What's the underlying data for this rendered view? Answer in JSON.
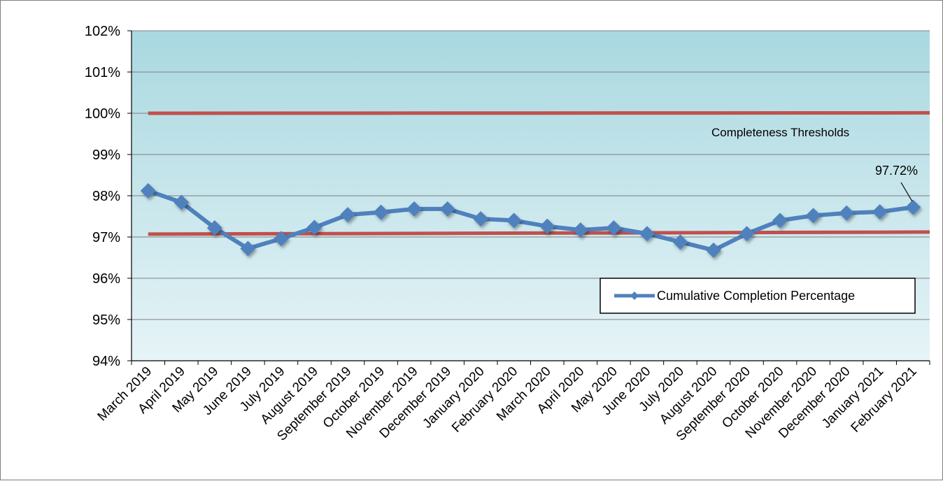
{
  "chart_data": {
    "type": "line",
    "title": "",
    "xlabel": "",
    "ylabel": "",
    "ylim": [
      0.94,
      1.02
    ],
    "y_ticks": [
      "94%",
      "95%",
      "96%",
      "97%",
      "98%",
      "99%",
      "100%",
      "101%",
      "102%"
    ],
    "grid": "horizontal",
    "legend_position": "lower-right",
    "categories": [
      "March 2019",
      "April 2019",
      "May 2019",
      "June 2019",
      "July 2019",
      "August 2019",
      "September 2019",
      "October 2019",
      "November 2019",
      "December 2019",
      "January 2020",
      "February 2020",
      "March 2020",
      "April 2020",
      "May 2020",
      "June 2020",
      "July 2020",
      "August 2020",
      "September 2020",
      "October 2020",
      "November 2020",
      "December 2020",
      "January 2021",
      "February 2021"
    ],
    "series": [
      {
        "name": "Cumulative Completion Percentage",
        "color": "#4f81bd",
        "values": [
          0.9812,
          0.9784,
          0.9722,
          0.9672,
          0.9696,
          0.9723,
          0.9754,
          0.976,
          0.9768,
          0.9768,
          0.9744,
          0.974,
          0.9726,
          0.9717,
          0.9722,
          0.9708,
          0.9688,
          0.9668,
          0.9708,
          0.974,
          0.9752,
          0.9758,
          0.9761,
          0.9772
        ]
      }
    ],
    "thresholds": [
      {
        "start": 1.0,
        "end": 1.0001,
        "color": "#c0504d"
      },
      {
        "start": 0.9707,
        "end": 0.9712,
        "color": "#c0504d"
      }
    ],
    "annotations": {
      "threshold_label": "Completeness Thresholds",
      "last_value_label": "97.72%"
    },
    "colors": {
      "plot_bg_top": "#a9d8e0",
      "plot_bg_bottom": "#e6f4f7",
      "gridline": "#7f7f7f"
    }
  }
}
